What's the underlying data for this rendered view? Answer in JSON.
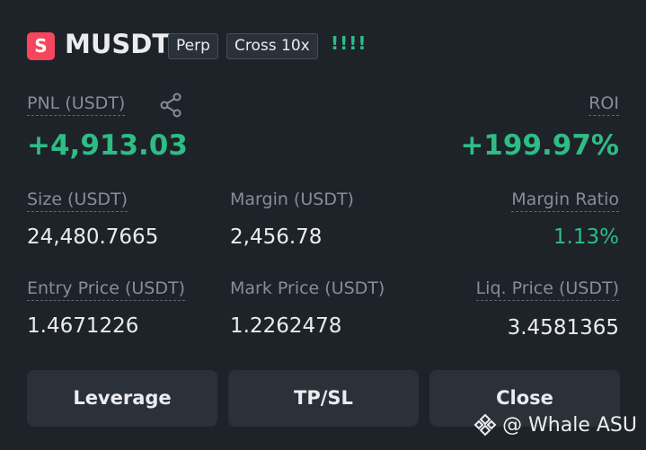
{
  "header": {
    "badge": "S",
    "symbol": "MUSDT",
    "tags": [
      "Perp",
      "Cross 10x"
    ],
    "signal": "!!!!"
  },
  "pnl": {
    "label": "PNL (USDT)",
    "value": "+4,913.03"
  },
  "roi": {
    "label": "ROI",
    "value": "+199.97%"
  },
  "fields": [
    {
      "label": "Size (USDT)",
      "value": "24,480.7665"
    },
    {
      "label": "Margin (USDT)",
      "value": "2,456.78"
    },
    {
      "label": "Margin Ratio",
      "value": "1.13%"
    },
    {
      "label": "Entry Price (USDT)",
      "value": "1.4671226"
    },
    {
      "label": "Mark Price (USDT)",
      "value": "1.2262478"
    },
    {
      "label": "Liq. Price (USDT)",
      "value": "3.4581365"
    }
  ],
  "buttons": [
    "Leverage",
    "TP/SL",
    "Close"
  ],
  "watermark": "@ Whale ASU"
}
